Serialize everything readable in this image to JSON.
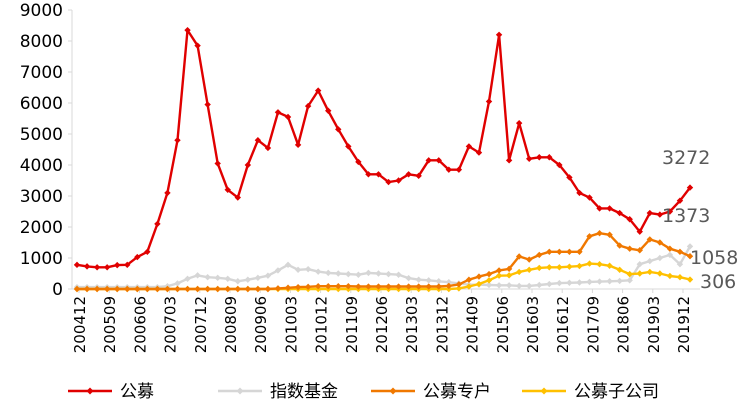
{
  "chart_data": {
    "type": "line",
    "title": "",
    "xlabel": "",
    "ylabel": "",
    "ylim": [
      0,
      9000
    ],
    "yticks": [
      0,
      1000,
      2000,
      3000,
      4000,
      5000,
      6000,
      7000,
      8000,
      9000
    ],
    "x_tick_labels": [
      "200412",
      "200509",
      "200606",
      "200703",
      "200712",
      "200809",
      "200906",
      "201003",
      "201012",
      "201109",
      "201206",
      "201303",
      "201312",
      "201409",
      "201506",
      "201603",
      "201612",
      "201709",
      "201806",
      "201903",
      "201912"
    ],
    "legend_position": "bottom",
    "grid": false,
    "colors": {
      "gongmu": "#e00000",
      "zhishu": "#d6d6d6",
      "zhuanhu": "#f07800",
      "zigongsi": "#ffc000"
    },
    "series": [
      {
        "name": "公募",
        "color": "#e00000",
        "values": [
          780,
          730,
          700,
          700,
          770,
          780,
          1030,
          1200,
          2100,
          3100,
          4800,
          8350,
          7850,
          5950,
          4050,
          3200,
          2950,
          4000,
          4800,
          4550,
          5700,
          5550,
          4650,
          5900,
          6400,
          5750,
          5150,
          4600,
          4100,
          3700,
          3700,
          3450,
          3500,
          3700,
          3650,
          4150,
          4150,
          3850,
          3850,
          4600,
          4400,
          6050,
          8200,
          4150,
          5350,
          4200,
          4250,
          4250,
          4000,
          3600,
          3100,
          2950,
          2600,
          2600,
          2450,
          2250,
          1850,
          2450,
          2400,
          2500,
          2850,
          3272
        ]
      },
      {
        "name": "指数基金",
        "color": "#d6d6d6",
        "values": [
          60,
          60,
          60,
          60,
          60,
          60,
          60,
          60,
          60,
          90,
          180,
          330,
          440,
          380,
          360,
          330,
          250,
          300,
          360,
          430,
          600,
          780,
          620,
          640,
          560,
          520,
          500,
          480,
          460,
          520,
          500,
          480,
          460,
          350,
          300,
          280,
          250,
          220,
          180,
          140,
          140,
          130,
          120,
          120,
          100,
          100,
          130,
          160,
          190,
          200,
          210,
          230,
          240,
          250,
          260,
          280,
          800,
          900,
          1000,
          1100,
          800,
          1373
        ]
      },
      {
        "name": "公募专户",
        "color": "#f07800",
        "values": [
          0,
          0,
          0,
          0,
          0,
          0,
          0,
          0,
          0,
          0,
          0,
          0,
          0,
          0,
          0,
          0,
          0,
          0,
          0,
          0,
          20,
          40,
          60,
          70,
          90,
          90,
          90,
          90,
          80,
          80,
          80,
          80,
          80,
          80,
          80,
          80,
          80,
          100,
          150,
          300,
          400,
          480,
          600,
          650,
          1050,
          950,
          1100,
          1200,
          1200,
          1200,
          1200,
          1700,
          1800,
          1750,
          1400,
          1300,
          1250,
          1600,
          1500,
          1300,
          1200,
          1058
        ]
      },
      {
        "name": "公募子公司",
        "color": "#ffc000",
        "values": [
          0,
          0,
          0,
          0,
          0,
          0,
          0,
          0,
          0,
          0,
          0,
          0,
          0,
          0,
          0,
          0,
          0,
          0,
          0,
          0,
          0,
          0,
          0,
          0,
          0,
          0,
          0,
          0,
          0,
          0,
          0,
          0,
          0,
          0,
          0,
          0,
          0,
          0,
          20,
          80,
          160,
          280,
          430,
          440,
          550,
          620,
          680,
          700,
          700,
          720,
          740,
          820,
          800,
          750,
          620,
          480,
          500,
          550,
          500,
          420,
          380,
          306
        ]
      }
    ],
    "end_labels": [
      "3272",
      "1373",
      "1058",
      "306"
    ]
  }
}
